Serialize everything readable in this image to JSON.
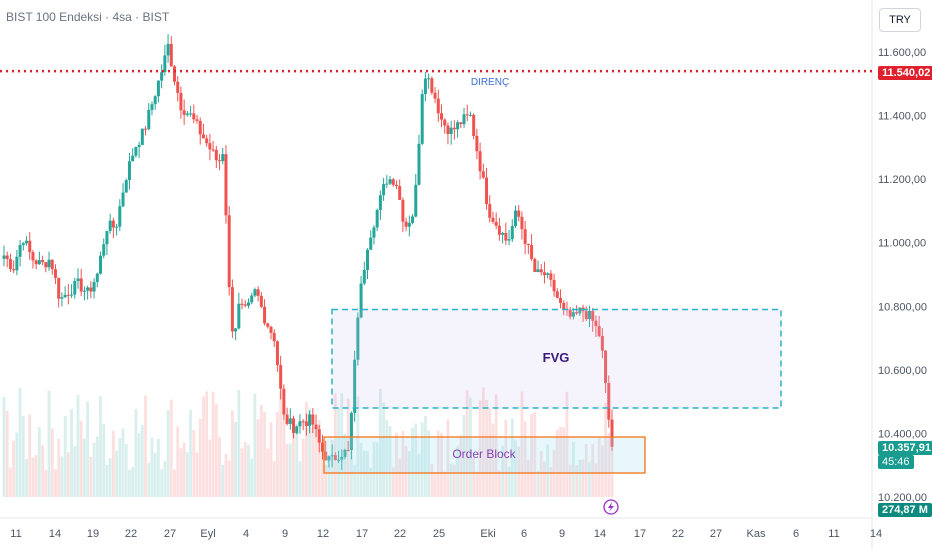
{
  "header": {
    "title": "BIST 100 Endeksi · 4sa · BIST",
    "currency_button": "TRY"
  },
  "price_tags": {
    "resistance": "11.540,02",
    "last_price": "10.357,91",
    "countdown": "45:46",
    "volume": "274,87 M"
  },
  "colors": {
    "up": "#26a69a",
    "down": "#ef5350",
    "resistance": "#e0202b",
    "fvg": "#26b5c9",
    "order_block": "#f97316"
  },
  "chart_data": {
    "type": "candlestick",
    "y_ticks": [
      "11.600,00",
      "11.400,00",
      "11.200,00",
      "11.000,00",
      "10.800,00",
      "10.600,00",
      "10.400,00",
      "10.200,00"
    ],
    "y_tick_values": [
      11600,
      11400,
      11200,
      11000,
      10800,
      10600,
      10400,
      10200
    ],
    "ylim": [
      10120,
      11700
    ],
    "x_ticks": [
      "11",
      "14",
      "19",
      "22",
      "27",
      "Eyl",
      "4",
      "9",
      "12",
      "17",
      "22",
      "25",
      "Eki",
      "6",
      "9",
      "14",
      "17",
      "22",
      "27",
      "Kas",
      "6",
      "11",
      "14"
    ],
    "candles": 190,
    "close_path": [
      [
        0,
        10960
      ],
      [
        5,
        10920
      ],
      [
        10,
        11020
      ],
      [
        15,
        10950
      ],
      [
        20,
        10930
      ],
      [
        25,
        10950
      ],
      [
        30,
        10820
      ],
      [
        35,
        10850
      ],
      [
        40,
        10870
      ],
      [
        45,
        10840
      ],
      [
        50,
        10900
      ],
      [
        55,
        11050
      ],
      [
        60,
        11050
      ],
      [
        65,
        11200
      ],
      [
        70,
        11300
      ],
      [
        75,
        11350
      ],
      [
        80,
        11450
      ],
      [
        85,
        11550
      ],
      [
        88,
        11620
      ],
      [
        92,
        11500
      ],
      [
        95,
        11430
      ],
      [
        100,
        11400
      ],
      [
        105,
        11350
      ],
      [
        110,
        11300
      ],
      [
        115,
        11250
      ],
      [
        118,
        11300
      ],
      [
        120,
        10900
      ],
      [
        123,
        10700
      ],
      [
        126,
        10800
      ],
      [
        130,
        10780
      ],
      [
        135,
        10850
      ],
      [
        140,
        10760
      ],
      [
        145,
        10700
      ],
      [
        150,
        10450
      ],
      [
        155,
        10420
      ],
      [
        160,
        10440
      ],
      [
        165,
        10440
      ],
      [
        170,
        10350
      ],
      [
        175,
        10310
      ],
      [
        180,
        10340
      ],
      [
        185,
        10340
      ],
      [
        190,
        10800
      ],
      [
        195,
        11000
      ],
      [
        200,
        11100
      ],
      [
        205,
        11200
      ],
      [
        210,
        11200
      ],
      [
        215,
        11050
      ],
      [
        220,
        11100
      ],
      [
        225,
        11550
      ],
      [
        230,
        11480
      ],
      [
        235,
        11380
      ],
      [
        240,
        11350
      ],
      [
        245,
        11380
      ],
      [
        250,
        11400
      ],
      [
        255,
        11250
      ],
      [
        260,
        11100
      ],
      [
        265,
        11050
      ],
      [
        270,
        11000
      ],
      [
        275,
        11100
      ],
      [
        280,
        11000
      ],
      [
        285,
        10900
      ],
      [
        290,
        10900
      ],
      [
        295,
        10850
      ],
      [
        300,
        10780
      ],
      [
        305,
        10760
      ],
      [
        310,
        10790
      ],
      [
        315,
        10760
      ],
      [
        320,
        10700
      ],
      [
        325,
        10400
      ],
      [
        326,
        10360
      ]
    ],
    "annotations": [
      {
        "label": "DIRENÇ",
        "price": 11540.02
      },
      {
        "label": "FVG",
        "y_range": [
          10480,
          10790
        ]
      },
      {
        "label": "Order Block",
        "y_range": [
          10290,
          10385
        ]
      }
    ]
  }
}
